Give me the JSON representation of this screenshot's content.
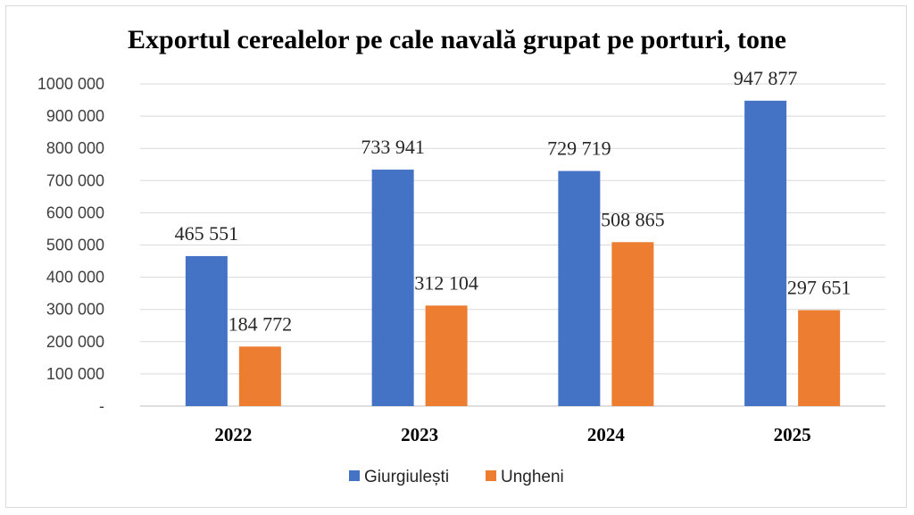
{
  "colors": {
    "series1": "#4472C4",
    "series2": "#ED7D31",
    "grid": "#d9d9d9",
    "axis": "#bfbfbf"
  },
  "chart_data": {
    "type": "bar",
    "title": "Exportul cerealelor pe cale navală grupat pe porturi, tone",
    "categories": [
      "2022",
      "2023",
      "2024",
      "2025"
    ],
    "series": [
      {
        "name": "Giurgiulești",
        "values": [
          465551,
          733941,
          729719,
          947877
        ],
        "labels": [
          "465 551",
          "733 941",
          "729 719",
          "947 877"
        ]
      },
      {
        "name": "Ungheni",
        "values": [
          184772,
          312104,
          508865,
          297651
        ],
        "labels": [
          "184 772",
          "312 104",
          "508 865",
          "297 651"
        ]
      }
    ],
    "ylim": [
      0,
      1000000
    ],
    "yticks": [
      0,
      100000,
      200000,
      300000,
      400000,
      500000,
      600000,
      700000,
      800000,
      900000,
      1000000
    ],
    "ytick_labels": [
      "-",
      "100 000",
      "200 000",
      "300 000",
      "400 000",
      "500 000",
      "600 000",
      "700 000",
      "800 000",
      "900 000",
      "1000 000"
    ],
    "xlabel": "",
    "ylabel": "",
    "grid": true,
    "legend": "bottom"
  }
}
